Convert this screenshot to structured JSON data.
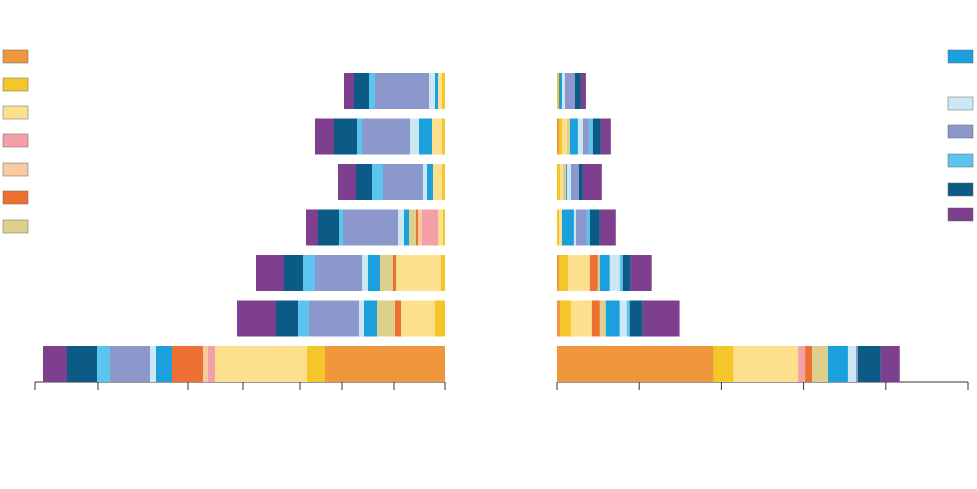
{
  "chart_data": [
    {
      "type": "bar",
      "orientation": "horizontal",
      "stacked": true,
      "mirrored": true,
      "xlim": [
        0,
        41
      ],
      "xticks": [
        0,
        5.1,
        10.3,
        14.5,
        20.2,
        25.7,
        34.7,
        41
      ],
      "series": [
        {
          "color": "#f0963c",
          "values": [
            0,
            0,
            0,
            0,
            0,
            0,
            12
          ]
        },
        {
          "color": "#f5c62a",
          "values": [
            0.3,
            0.3,
            0.3,
            0.2,
            0.4,
            1.0,
            1.8
          ]
        },
        {
          "color": "#fde08e",
          "values": [
            0.4,
            1.0,
            0.9,
            0.5,
            4.5,
            3.4,
            9.2
          ]
        },
        {
          "color": "#f4a0a8",
          "values": [
            0,
            0,
            0,
            1.6,
            0,
            0,
            0.7
          ]
        },
        {
          "color": "#f9c9a0",
          "values": [
            0,
            0,
            0,
            0.4,
            0,
            0,
            0.5
          ]
        },
        {
          "color": "#ee7033",
          "values": [
            0,
            0,
            0,
            0.2,
            0.3,
            0.6,
            3.1
          ]
        },
        {
          "color": "#ddd08c",
          "values": [
            0,
            0,
            0,
            0.7,
            1.3,
            1.8,
            0
          ]
        },
        {
          "color": "#1aa0dc",
          "values": [
            0.3,
            1.3,
            0.6,
            0.5,
            1.2,
            1.3,
            1.6
          ]
        },
        {
          "color": "#cde8f5",
          "values": [
            0.6,
            0.9,
            0.4,
            0.6,
            0.6,
            0.5,
            0.6
          ]
        },
        {
          "color": "#8c97cc",
          "values": [
            5.4,
            4.8,
            4.0,
            5.5,
            4.7,
            5.0,
            4.0
          ]
        },
        {
          "color": "#5bc4ef",
          "values": [
            0.6,
            0.5,
            1.1,
            0.4,
            1.2,
            1.1,
            1.3
          ]
        },
        {
          "color": "#0b5b86",
          "values": [
            1.5,
            2.3,
            1.6,
            2.1,
            1.9,
            2.2,
            3.0
          ]
        },
        {
          "color": "#7d3f8e",
          "values": [
            1.0,
            1.9,
            1.8,
            1.2,
            2.8,
            3.9,
            2.4
          ]
        }
      ]
    },
    {
      "type": "bar",
      "orientation": "horizontal",
      "stacked": true,
      "mirrored": false,
      "xlim": [
        0,
        41.25
      ],
      "xticks": [
        0,
        8.25,
        16.5,
        24.75,
        33,
        41.25
      ],
      "series": [
        {
          "color": "#f0963c",
          "values": [
            0,
            0.2,
            0,
            0,
            0.2,
            0.3,
            15.7
          ]
        },
        {
          "color": "#f5c62a",
          "values": [
            0.2,
            0.3,
            0.3,
            0.2,
            0.9,
            1.1,
            2.0
          ]
        },
        {
          "color": "#fde08e",
          "values": [
            0,
            0.5,
            0.3,
            0.3,
            2.2,
            2.1,
            6.5
          ]
        },
        {
          "color": "#f4a0a8",
          "values": [
            0,
            0,
            0,
            0,
            0,
            0,
            0.7
          ]
        },
        {
          "color": "#f9c9a0",
          "values": [
            0,
            0,
            0,
            0,
            0,
            0,
            0
          ]
        },
        {
          "color": "#ee7033",
          "values": [
            0,
            0,
            0,
            0,
            0.8,
            0.8,
            0.7
          ]
        },
        {
          "color": "#ddd08c",
          "values": [
            0,
            0.3,
            0.3,
            0,
            0.2,
            0.6,
            1.6
          ]
        },
        {
          "color": "#1aa0dc",
          "values": [
            0.3,
            0.8,
            0.1,
            1.2,
            1.0,
            1.4,
            2.0
          ]
        },
        {
          "color": "#cde8f5",
          "values": [
            0.3,
            0.5,
            0.4,
            0.2,
            1.0,
            0.7,
            0.8
          ]
        },
        {
          "color": "#8c97cc",
          "values": [
            1.0,
            0.6,
            0.8,
            1.1,
            0,
            0,
            0.2
          ]
        },
        {
          "color": "#5bc4ef",
          "values": [
            0,
            0.4,
            0,
            0.3,
            0.3,
            0.3,
            0
          ]
        },
        {
          "color": "#0b5b86",
          "values": [
            0.6,
            0.8,
            0.4,
            1.0,
            0.8,
            1.3,
            2.3
          ]
        },
        {
          "color": "#7d3f8e",
          "values": [
            0.5,
            1.0,
            1.9,
            1.6,
            2.1,
            3.7,
            1.9
          ]
        }
      ]
    }
  ]
}
